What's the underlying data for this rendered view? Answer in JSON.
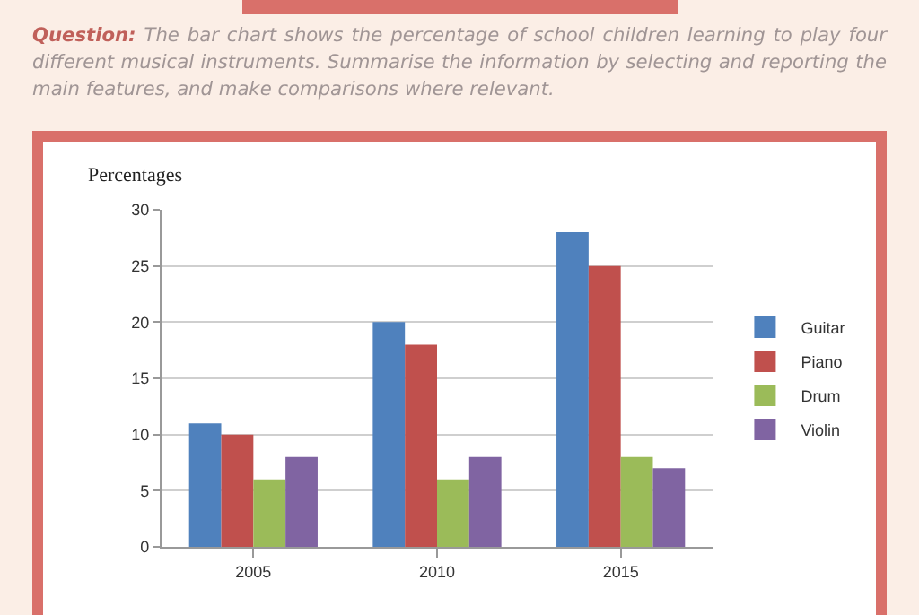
{
  "chart_data": {
    "type": "bar",
    "title": "Question:",
    "subtitle": "The bar chart shows the percentage of school children learning to play four different musical instruments. Summarise the information by selecting and reporting the main features, and make comparisons where relevant.",
    "ylabel": "Percentages",
    "categories": [
      "2005",
      "2010",
      "2015"
    ],
    "series": [
      {
        "name": "Guitar",
        "color": "#4f81bd",
        "values": [
          11,
          20,
          28
        ]
      },
      {
        "name": "Piano",
        "color": "#c0504d",
        "values": [
          10,
          18,
          25
        ]
      },
      {
        "name": "Drum",
        "color": "#9bbb59",
        "values": [
          6,
          6,
          8
        ]
      },
      {
        "name": "Violin",
        "color": "#8064a2",
        "values": [
          8,
          8,
          7
        ]
      }
    ],
    "ylim": [
      0,
      30
    ],
    "yticks": [
      0,
      5,
      10,
      15,
      20,
      25,
      30
    ],
    "grid": "y",
    "legend": "right"
  }
}
